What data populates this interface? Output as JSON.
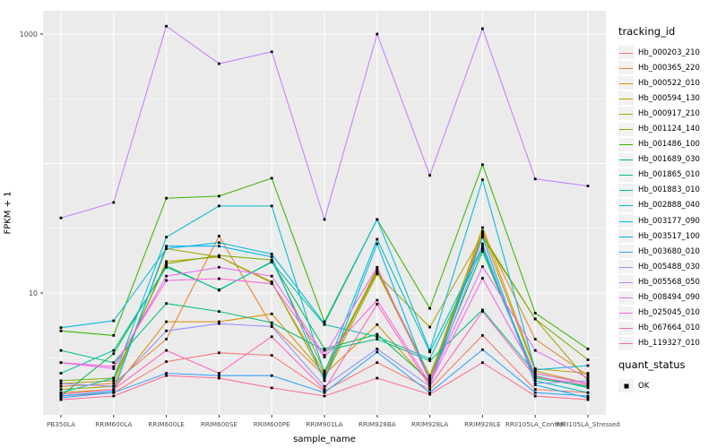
{
  "chart_data": {
    "type": "line",
    "title": "",
    "xlabel": "sample_name",
    "ylabel": "FPKM + 1",
    "y_scale": "log10",
    "ylim": [
      1.1,
      1500
    ],
    "grid": true,
    "y_ticks": [
      {
        "value": 1000,
        "label": "1000"
      },
      {
        "value": 10,
        "label": "10"
      }
    ],
    "y_gridlines_major": [
      10,
      100,
      1000
    ],
    "y_gridlines_minor": [
      3.162,
      31.62,
      316.2
    ],
    "categories": [
      "PB350LA",
      "RRIM600LA",
      "RRIM600LE",
      "RRIM600SE",
      "RRIM600PE",
      "RRIM901LA",
      "RRIM928BA",
      "RRIM928LA",
      "RRIM928LE",
      "RRII105LA_Control",
      "RRII105LA_Stressed"
    ],
    "point_color": "#000000",
    "panel_bg": "#EBEBEB",
    "grid_color": "#FFFFFF",
    "legend": {
      "color_title": "tracking_id",
      "shape_title": "quant_status",
      "shape_items": [
        {
          "label": "OK"
        }
      ],
      "position": "right"
    },
    "series": [
      {
        "name": "Hb_000203_210",
        "color": "#F8766D",
        "values": [
          1.6,
          1.7,
          2.95,
          3.45,
          3.3,
          1.75,
          2.9,
          1.8,
          4.7,
          1.8,
          1.7
        ]
      },
      {
        "name": "Hb_000365_220",
        "color": "#EA8331",
        "values": [
          1.9,
          2.0,
          4.4,
          27.5,
          5.6,
          2.3,
          15.5,
          2.1,
          30,
          4.4,
          2.3
        ]
      },
      {
        "name": "Hb_000522_010",
        "color": "#D89000",
        "values": [
          1.7,
          1.8,
          6.0,
          6.0,
          6.9,
          2.35,
          5.7,
          2.0,
          29,
          2.5,
          2.0
        ]
      },
      {
        "name": "Hb_000594_130",
        "color": "#C09B00",
        "values": [
          2.0,
          2.1,
          17.5,
          19,
          12,
          2.4,
          14.5,
          2.2,
          32,
          2.6,
          2.4
        ]
      },
      {
        "name": "Hb_000917_210",
        "color": "#A3A500",
        "values": [
          1.8,
          1.9,
          22,
          19,
          12.2,
          2.2,
          14,
          5.45,
          28,
          6.3,
          2.1
        ]
      },
      {
        "name": "Hb_001124_140",
        "color": "#7CAE00",
        "values": [
          2.1,
          2.2,
          16.8,
          19.5,
          18,
          2.5,
          15,
          2.3,
          27,
          6.3,
          3.05
        ]
      },
      {
        "name": "Hb_001486_100",
        "color": "#39B600",
        "values": [
          5.1,
          4.7,
          54,
          56,
          77,
          6.0,
          37,
          7.6,
          98,
          7.0,
          3.7
        ]
      },
      {
        "name": "Hb_001689_030",
        "color": "#00BB4E",
        "values": [
          1.6,
          3.4,
          16.2,
          10.5,
          17.5,
          3.7,
          4.8,
          2.1,
          21,
          2.2,
          1.9
        ]
      },
      {
        "name": "Hb_001865_010",
        "color": "#00BF7D",
        "values": [
          3.6,
          2.9,
          8.3,
          7.2,
          5.9,
          3.6,
          4.4,
          3.0,
          7.4,
          2.4,
          2.0
        ]
      },
      {
        "name": "Hb_001883_010",
        "color": "#00C1A3",
        "values": [
          2.4,
          3.6,
          15.8,
          10.6,
          17.3,
          5.7,
          4.6,
          3.1,
          22,
          2.3,
          1.85
        ]
      },
      {
        "name": "Hb_002888_040",
        "color": "#00BFC4",
        "values": [
          1.7,
          2.2,
          27,
          47,
          47,
          2.4,
          26,
          3.5,
          23,
          2.1,
          1.7
        ]
      },
      {
        "name": "Hb_003177_090",
        "color": "#00BAE0",
        "values": [
          5.4,
          6.1,
          22,
          24.5,
          20,
          5.8,
          37,
          3.6,
          75,
          2.55,
          2.75
        ]
      },
      {
        "name": "Hb_003517_100",
        "color": "#00B0F6",
        "values": [
          1.6,
          1.75,
          23,
          23,
          19,
          2.1,
          24,
          2.05,
          27,
          1.95,
          1.55
        ]
      },
      {
        "name": "Hb_003680_010",
        "color": "#35A2FF",
        "values": [
          1.55,
          1.7,
          2.4,
          2.3,
          2.3,
          1.7,
          3.5,
          1.7,
          3.65,
          1.7,
          1.6
        ]
      },
      {
        "name": "Hb_005488_030",
        "color": "#9590FF",
        "values": [
          2.0,
          1.9,
          5.1,
          5.8,
          5.5,
          1.9,
          3.7,
          1.9,
          24,
          2.0,
          2.1
        ]
      },
      {
        "name": "Hb_005568_050",
        "color": "#C77CFF",
        "values": [
          38,
          50,
          1150,
          590,
          730,
          37,
          1000,
          81,
          1100,
          76,
          67
        ]
      },
      {
        "name": "Hb_008494_090",
        "color": "#E76BF3",
        "values": [
          2.9,
          2.6,
          13.5,
          15.8,
          13.5,
          3.3,
          15.8,
          2.1,
          16,
          3.6,
          2.2
        ]
      },
      {
        "name": "Hb_025045_010",
        "color": "#FA62DB",
        "values": [
          2.9,
          2.7,
          12.5,
          12.9,
          11.8,
          3.2,
          8.8,
          2.0,
          13,
          2.4,
          2.0
        ]
      },
      {
        "name": "Hb_067664_010",
        "color": "#FF62BC",
        "values": [
          1.65,
          1.8,
          3.6,
          2.4,
          4.6,
          1.8,
          8.2,
          1.9,
          7.2,
          2.25,
          1.95
        ]
      },
      {
        "name": "Hb_119327_010",
        "color": "#FF6A98",
        "values": [
          1.5,
          1.6,
          2.3,
          2.2,
          1.85,
          1.6,
          2.2,
          1.65,
          2.9,
          1.6,
          1.5
        ]
      }
    ]
  }
}
